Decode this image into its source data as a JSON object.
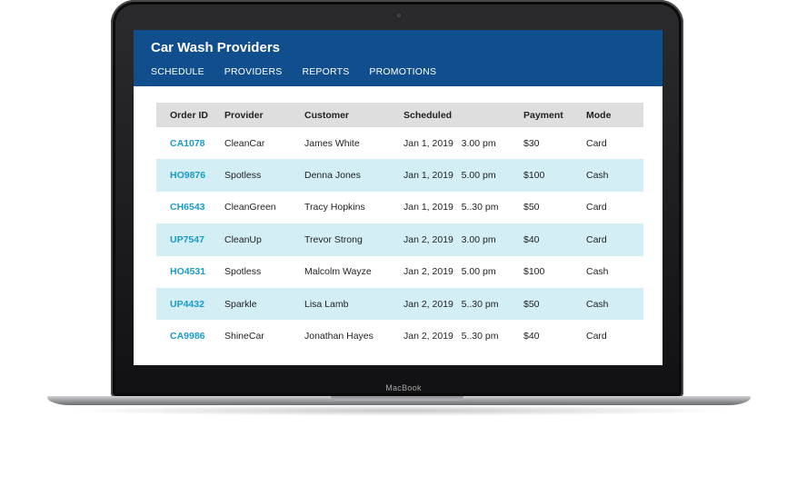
{
  "device": {
    "brand_label": "MacBook"
  },
  "app": {
    "title": "Car Wash Providers",
    "nav": [
      "SCHEDULE",
      "PROVIDERS",
      "REPORTS",
      "PROMOTIONS"
    ],
    "colors": {
      "header": "#114e8e",
      "link": "#1a9ac9",
      "row_alt": "#d3eef5",
      "table_head": "#dedede"
    }
  },
  "table": {
    "columns": [
      "Order ID",
      "Provider",
      "Customer",
      "Scheduled",
      "Payment",
      "Mode"
    ],
    "rows": [
      [
        "CA1078",
        "CleanCar",
        "James White",
        "Jan 1, 2019   3.00 pm",
        "$30",
        "Card"
      ],
      [
        "HO9876",
        "Spotless",
        "Denna Jones",
        "Jan 1, 2019   5.00 pm",
        "$100",
        "Cash"
      ],
      [
        "CH6543",
        "CleanGreen",
        "Tracy Hopkins",
        "Jan 1, 2019   5..30 pm",
        "$50",
        "Card"
      ],
      [
        "UP7547",
        "CleanUp",
        "Trevor Strong",
        "Jan 2, 2019   3.00 pm",
        "$40",
        "Card"
      ],
      [
        "HO4531",
        "Spotless",
        "Malcolm Wayze",
        "Jan 2, 2019   5.00 pm",
        "$100",
        "Cash"
      ],
      [
        "UP4432",
        "Sparkle",
        "Lisa Lamb",
        "Jan 2, 2019   5..30 pm",
        "$50",
        "Cash"
      ],
      [
        "CA9986",
        "ShineCar",
        "Jonathan Hayes",
        "Jan 2, 2019   5..30 pm",
        "$40",
        "Card"
      ]
    ]
  }
}
